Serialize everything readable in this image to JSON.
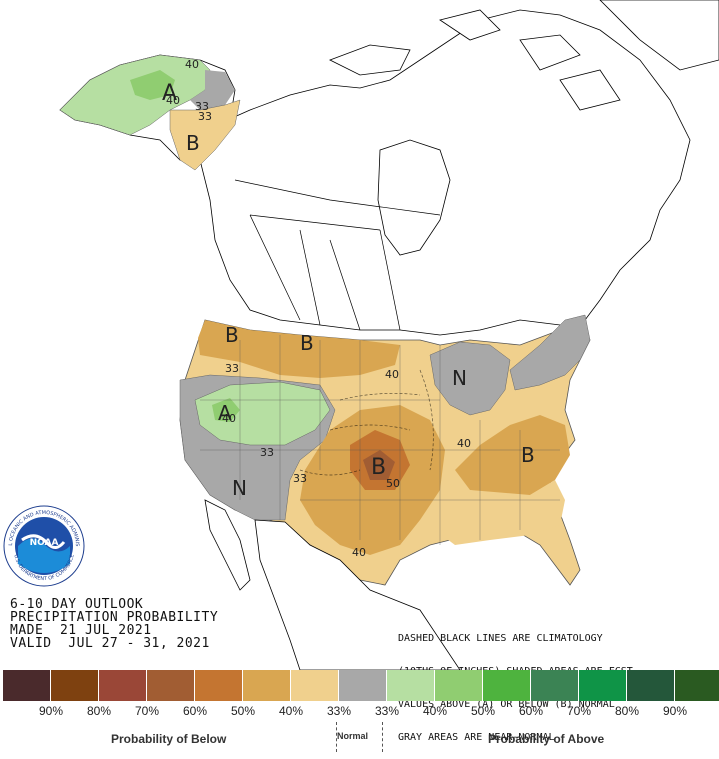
{
  "title": {
    "line1": "6-10 DAY OUTLOOK",
    "line2": "PRECIPITATION PROBABILITY",
    "line3": "MADE  21 JUL 2021",
    "line4": "VALID  JUL 27 - 31, 2021"
  },
  "note": {
    "line1": "DASHED BLACK LINES ARE CLIMATOLOGY",
    "line2": "(10THS OF INCHES) SHADED AREAS ARE FCST",
    "line3": "VALUES ABOVE (A) OR BELOW (B) NORMAL",
    "line4": "GRAY AREAS ARE NEAR-NORMAL"
  },
  "logo": {
    "text": "NOAA",
    "ring_top": "NATIONAL OCEANIC AND ATMOSPHERIC ADMINISTRATION",
    "ring_bottom": "U.S. DEPARTMENT OF COMMERCE"
  },
  "map_labels": {
    "alaska_a": "A",
    "alaska_40a": "40",
    "alaska_40b": "40",
    "alaska_33a": "33",
    "alaska_33b": "33",
    "alaska_b": "B",
    "nw_b": "B",
    "north_b": "B",
    "nw_33": "33",
    "sw_a": "A",
    "sw_40": "40",
    "sw_33a": "33",
    "sw_33b": "33",
    "sw_n": "N",
    "plains_40": "40",
    "greatlakes_n": "N",
    "ohio_40": "40",
    "center_b": "B",
    "center_50": "50",
    "se_b": "B",
    "tx_40": "40"
  },
  "legend": {
    "colors": [
      "#4a2a2c",
      "#7e4110",
      "#9a4737",
      "#a15d33",
      "#c47531",
      "#d9a651",
      "#f0d08d",
      "#a8a8a8",
      "#b6dfa2",
      "#90cd71",
      "#4eb33e",
      "#3b8354",
      "#0f9447",
      "#24573a",
      "#2a5a21"
    ],
    "percents": [
      "90%",
      "80%",
      "70%",
      "60%",
      "50%",
      "40%",
      "33%",
      "33%",
      "40%",
      "50%",
      "60%",
      "70%",
      "80%",
      "90%"
    ],
    "below_label": "Probability of Below",
    "normal_label": "Normal",
    "above_label": "Probability of Above"
  }
}
